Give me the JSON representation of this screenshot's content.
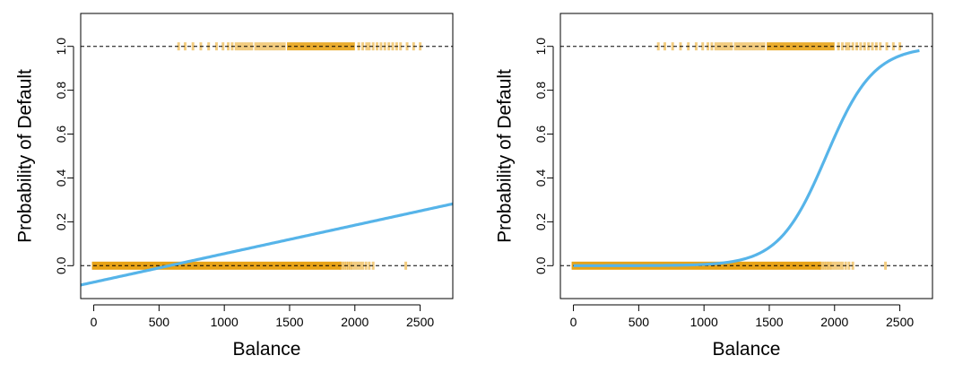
{
  "chart_data": [
    {
      "type": "scatter",
      "title": "",
      "xlabel": "Balance",
      "ylabel": "Probability of Default",
      "xlim": [
        -100,
        2750
      ],
      "ylim": [
        -0.15,
        1.15
      ],
      "xticks": [
        0,
        500,
        1000,
        1500,
        2000,
        2500
      ],
      "xtick_labels": [
        "0",
        "500",
        "1000",
        "1500",
        "2000",
        "2500"
      ],
      "yticks": [
        0.0,
        0.2,
        0.4,
        0.6,
        0.8,
        1.0
      ],
      "ytick_labels": [
        "0.0",
        "0.2",
        "0.4",
        "0.6",
        "0.8",
        "1.0"
      ],
      "reference_lines_y": [
        0,
        1
      ],
      "grid": false,
      "colors": {
        "points": "#e8a317",
        "fit": "#56b4e9",
        "reference": "#000000"
      },
      "points_default_no": {
        "y": 0,
        "dense_range": [
          0,
          1880
        ],
        "balances": [
          1890,
          1905,
          1920,
          1935,
          1950,
          1965,
          1980,
          2000,
          2020,
          2040,
          2060,
          2085,
          2110,
          2140,
          2390
        ]
      },
      "points_default_yes": {
        "y": 1,
        "dense_range": [
          1480,
          2000
        ],
        "balances": [
          650,
          700,
          760,
          820,
          880,
          940,
          990,
          1030,
          1060,
          1090,
          1110,
          1130,
          1150,
          1170,
          1190,
          1210,
          1240,
          1260,
          1280,
          1300,
          1320,
          1340,
          1360,
          1380,
          1400,
          1420,
          1440,
          1460,
          2030,
          2060,
          2090,
          2110,
          2140,
          2170,
          2200,
          2230,
          2260,
          2290,
          2320,
          2350,
          2400,
          2450,
          2500
        ]
      },
      "fit": {
        "kind": "linear",
        "intercept": -0.0752,
        "slope": 0.0001299,
        "x_range": [
          -100,
          2750
        ]
      }
    },
    {
      "type": "scatter",
      "title": "",
      "xlabel": "Balance",
      "ylabel": "Probability of Default",
      "xlim": [
        -100,
        2750
      ],
      "ylim": [
        -0.15,
        1.15
      ],
      "xticks": [
        0,
        500,
        1000,
        1500,
        2000,
        2500
      ],
      "xtick_labels": [
        "0",
        "500",
        "1000",
        "1500",
        "2000",
        "2500"
      ],
      "yticks": [
        0.0,
        0.2,
        0.4,
        0.6,
        0.8,
        1.0
      ],
      "ytick_labels": [
        "0.0",
        "0.2",
        "0.4",
        "0.6",
        "0.8",
        "1.0"
      ],
      "reference_lines_y": [
        0,
        1
      ],
      "grid": false,
      "colors": {
        "points": "#e8a317",
        "fit": "#56b4e9",
        "reference": "#000000"
      },
      "points_default_no": {
        "y": 0,
        "dense_range": [
          0,
          1880
        ],
        "balances": [
          1890,
          1905,
          1920,
          1935,
          1950,
          1965,
          1980,
          2000,
          2020,
          2040,
          2060,
          2085,
          2110,
          2140,
          2390
        ]
      },
      "points_default_yes": {
        "y": 1,
        "dense_range": [
          1480,
          2000
        ],
        "balances": [
          650,
          700,
          760,
          820,
          880,
          940,
          990,
          1030,
          1060,
          1090,
          1110,
          1130,
          1150,
          1170,
          1190,
          1210,
          1240,
          1260,
          1280,
          1300,
          1320,
          1340,
          1360,
          1380,
          1400,
          1420,
          1440,
          1460,
          2030,
          2060,
          2090,
          2110,
          2140,
          2170,
          2200,
          2230,
          2260,
          2290,
          2320,
          2350,
          2400,
          2450,
          2500
        ]
      },
      "fit": {
        "kind": "logistic",
        "intercept": -10.65,
        "slope": 0.0055,
        "x_range": [
          0,
          2650
        ]
      }
    }
  ]
}
